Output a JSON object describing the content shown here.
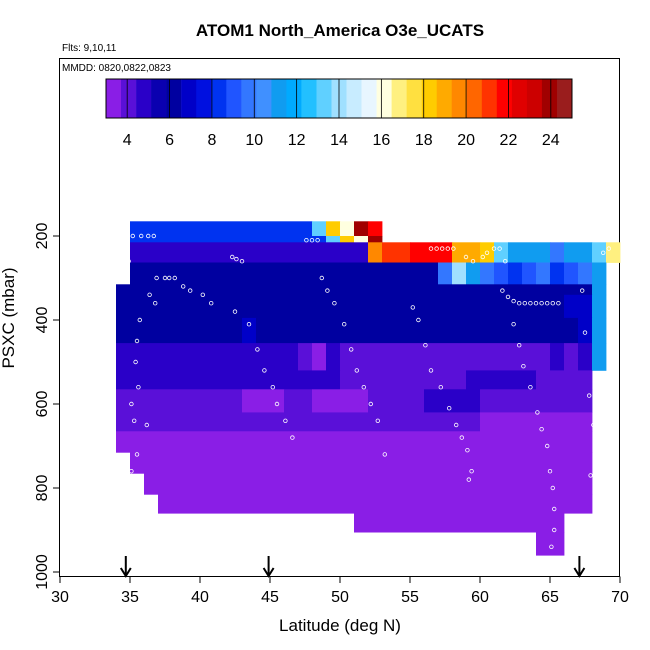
{
  "chart_data": {
    "type": "heatmap",
    "title": "ATOM1 North_America O3e_UCATS",
    "flights_text": "Flts: 9,10,11",
    "dates_text": "MMDD: 0820,0822,0823",
    "xlabel": "Latitude (deg N)",
    "ylabel": "PSXC (mbar)",
    "xlim": [
      30,
      70
    ],
    "ylim": [
      1000,
      100
    ],
    "x_ticks": [
      30,
      35,
      40,
      45,
      50,
      55,
      60,
      65,
      70
    ],
    "y_ticks": [
      200,
      400,
      600,
      800,
      1000
    ],
    "colorbar": {
      "range": [
        3,
        25
      ],
      "ticks": [
        4,
        6,
        8,
        10,
        12,
        14,
        16,
        18,
        20,
        22,
        24
      ],
      "colors": [
        "#8a1ee6",
        "#5a10d8",
        "#2a00c8",
        "#0a00b0",
        "#0000a0",
        "#0000c8",
        "#0010e0",
        "#0033f0",
        "#2055ff",
        "#3377ff",
        "#4090ff",
        "#109cf0",
        "#00aaff",
        "#22c0ff",
        "#60d0ff",
        "#a0e0ff",
        "#c8ecff",
        "#e8f6ff",
        "#ffffe0",
        "#fff080",
        "#ffe040",
        "#ffcc00",
        "#ffaa00",
        "#ff8800",
        "#ff6600",
        "#ff3300",
        "#ff0000",
        "#e00000",
        "#cc0000",
        "#a00000",
        "#9a1d1d"
      ]
    },
    "arrows_lat": [
      34.7,
      44.9,
      67.1
    ],
    "rows": [
      {
        "p0": 165,
        "p1": 200,
        "cells": [
          [
            35,
            48,
            8
          ],
          [
            48,
            49,
            13
          ],
          [
            49,
            50,
            18
          ],
          [
            50,
            51,
            16
          ],
          [
            51,
            52,
            24
          ],
          [
            52,
            53,
            22
          ]
        ]
      },
      {
        "p0": 200,
        "p1": 215,
        "cells": [
          [
            35,
            49,
            8
          ],
          [
            49,
            50,
            13
          ],
          [
            50,
            51,
            18
          ],
          [
            51,
            52,
            16
          ],
          [
            52,
            53,
            24
          ]
        ]
      },
      {
        "p0": 215,
        "p1": 263,
        "cells": [
          [
            35,
            52,
            5
          ],
          [
            52,
            53,
            20
          ],
          [
            53,
            55,
            21
          ],
          [
            55,
            58,
            22
          ],
          [
            58,
            60,
            19
          ],
          [
            60,
            61,
            18
          ],
          [
            61,
            62,
            13
          ],
          [
            62,
            65,
            11
          ],
          [
            65,
            66,
            10
          ],
          [
            66,
            68,
            11
          ],
          [
            68,
            69,
            13
          ],
          [
            69,
            70,
            17
          ]
        ]
      },
      {
        "p0": 263,
        "p1": 315,
        "cells": [
          [
            35,
            57,
            6
          ],
          [
            57,
            58,
            10
          ],
          [
            58,
            59,
            14
          ],
          [
            59,
            60,
            11
          ],
          [
            60,
            61,
            10
          ],
          [
            61,
            62,
            9
          ],
          [
            62,
            63,
            8
          ],
          [
            63,
            64,
            9
          ],
          [
            64,
            65,
            10
          ],
          [
            65,
            66,
            8
          ],
          [
            66,
            67,
            9
          ],
          [
            67,
            68,
            10
          ],
          [
            68,
            69,
            11
          ]
        ]
      },
      {
        "p0": 315,
        "p1": 340,
        "cells": [
          [
            34,
            65,
            6
          ],
          [
            65,
            68,
            6
          ],
          [
            68,
            69,
            11
          ]
        ]
      },
      {
        "p0": 340,
        "p1": 395,
        "cells": [
          [
            34,
            66,
            6
          ],
          [
            66,
            68,
            7
          ],
          [
            68,
            69,
            11
          ]
        ]
      },
      {
        "p0": 395,
        "p1": 455,
        "cells": [
          [
            34,
            43,
            6
          ],
          [
            43,
            44,
            7
          ],
          [
            44,
            67,
            6
          ],
          [
            67,
            68,
            7
          ],
          [
            68,
            69,
            11
          ]
        ]
      },
      {
        "p0": 455,
        "p1": 520,
        "cells": [
          [
            34,
            47,
            5
          ],
          [
            47,
            48,
            4
          ],
          [
            48,
            49,
            3
          ],
          [
            49,
            50,
            5
          ],
          [
            50,
            65,
            4
          ],
          [
            65,
            66,
            5
          ],
          [
            66,
            67,
            4
          ],
          [
            67,
            68,
            5
          ],
          [
            68,
            69,
            11
          ]
        ]
      },
      {
        "p0": 520,
        "p1": 565,
        "cells": [
          [
            34,
            50,
            5
          ],
          [
            50,
            59,
            4
          ],
          [
            59,
            64,
            5
          ],
          [
            64,
            68,
            4
          ]
        ]
      },
      {
        "p0": 565,
        "p1": 620,
        "cells": [
          [
            34,
            43,
            4
          ],
          [
            43,
            46,
            3
          ],
          [
            46,
            48,
            4
          ],
          [
            48,
            52,
            3
          ],
          [
            52,
            56,
            4
          ],
          [
            56,
            60,
            5
          ],
          [
            60,
            68,
            4
          ]
        ]
      },
      {
        "p0": 620,
        "p1": 665,
        "cells": [
          [
            34,
            55,
            4
          ],
          [
            55,
            60,
            4
          ],
          [
            60,
            68,
            3
          ]
        ]
      },
      {
        "p0": 665,
        "p1": 715,
        "cells": [
          [
            34,
            53,
            3
          ],
          [
            53,
            68,
            3
          ]
        ]
      },
      {
        "p0": 715,
        "p1": 765,
        "cells": [
          [
            35,
            68,
            3
          ]
        ]
      },
      {
        "p0": 765,
        "p1": 815,
        "cells": [
          [
            36,
            68,
            3
          ]
        ]
      },
      {
        "p0": 815,
        "p1": 860,
        "cells": [
          [
            37,
            52,
            3
          ],
          [
            52,
            68,
            3
          ]
        ]
      },
      {
        "p0": 860,
        "p1": 905,
        "cells": [
          [
            51,
            66,
            3
          ]
        ]
      },
      {
        "p0": 905,
        "p1": 960,
        "cells": [
          [
            64,
            66,
            3
          ]
        ]
      }
    ],
    "points": [
      [
        34.6,
        230
      ],
      [
        34.9,
        260
      ],
      [
        35.2,
        200
      ],
      [
        35.8,
        200
      ],
      [
        36.3,
        200
      ],
      [
        36.7,
        200
      ],
      [
        36.9,
        300
      ],
      [
        36.4,
        340
      ],
      [
        36.8,
        360
      ],
      [
        35.7,
        400
      ],
      [
        35.5,
        450
      ],
      [
        35.4,
        500
      ],
      [
        35.6,
        560
      ],
      [
        35.1,
        600
      ],
      [
        35.3,
        640
      ],
      [
        36.2,
        650
      ],
      [
        35.5,
        720
      ],
      [
        35.1,
        760
      ],
      [
        37.5,
        300
      ],
      [
        37.8,
        300
      ],
      [
        38.2,
        300
      ],
      [
        38.8,
        320
      ],
      [
        39.3,
        330
      ],
      [
        40.2,
        340
      ],
      [
        40.8,
        360
      ],
      [
        42.3,
        250
      ],
      [
        42.6,
        255
      ],
      [
        43.0,
        260
      ],
      [
        42.5,
        380
      ],
      [
        43.5,
        410
      ],
      [
        44.1,
        470
      ],
      [
        44.6,
        520
      ],
      [
        45.2,
        560
      ],
      [
        45.5,
        600
      ],
      [
        46.1,
        640
      ],
      [
        46.6,
        680
      ],
      [
        47.6,
        210
      ],
      [
        48.0,
        210
      ],
      [
        48.4,
        210
      ],
      [
        48.7,
        300
      ],
      [
        49.1,
        330
      ],
      [
        49.6,
        360
      ],
      [
        50.3,
        410
      ],
      [
        50.8,
        470
      ],
      [
        51.2,
        520
      ],
      [
        51.7,
        560
      ],
      [
        52.2,
        600
      ],
      [
        52.7,
        640
      ],
      [
        53.2,
        720
      ],
      [
        55.2,
        370
      ],
      [
        55.6,
        400
      ],
      [
        56.1,
        460
      ],
      [
        56.5,
        520
      ],
      [
        57.2,
        560
      ],
      [
        57.8,
        610
      ],
      [
        58.3,
        650
      ],
      [
        58.7,
        680
      ],
      [
        59.1,
        710
      ],
      [
        59.4,
        760
      ],
      [
        59.2,
        780
      ],
      [
        56.5,
        230
      ],
      [
        56.9,
        230
      ],
      [
        57.3,
        230
      ],
      [
        57.7,
        230
      ],
      [
        58.1,
        230
      ],
      [
        59.0,
        250
      ],
      [
        59.5,
        260
      ],
      [
        60.2,
        250
      ],
      [
        60.5,
        240
      ],
      [
        61.0,
        230
      ],
      [
        61.4,
        230
      ],
      [
        61.8,
        260
      ],
      [
        61.6,
        330
      ],
      [
        62.0,
        345
      ],
      [
        62.4,
        355
      ],
      [
        62.8,
        360
      ],
      [
        63.2,
        360
      ],
      [
        63.6,
        360
      ],
      [
        64.0,
        360
      ],
      [
        64.4,
        360
      ],
      [
        64.8,
        360
      ],
      [
        65.2,
        360
      ],
      [
        65.6,
        360
      ],
      [
        62.4,
        410
      ],
      [
        62.8,
        460
      ],
      [
        63.1,
        510
      ],
      [
        63.6,
        560
      ],
      [
        64.1,
        620
      ],
      [
        64.4,
        660
      ],
      [
        64.8,
        700
      ],
      [
        65.0,
        760
      ],
      [
        65.2,
        800
      ],
      [
        65.3,
        850
      ],
      [
        65.3,
        900
      ],
      [
        65.1,
        940
      ],
      [
        67.3,
        330
      ],
      [
        67.5,
        430
      ],
      [
        68.8,
        240
      ],
      [
        69.2,
        230
      ],
      [
        67.8,
        580
      ],
      [
        68.1,
        650
      ],
      [
        68.5,
        690
      ],
      [
        67.9,
        770
      ]
    ]
  }
}
